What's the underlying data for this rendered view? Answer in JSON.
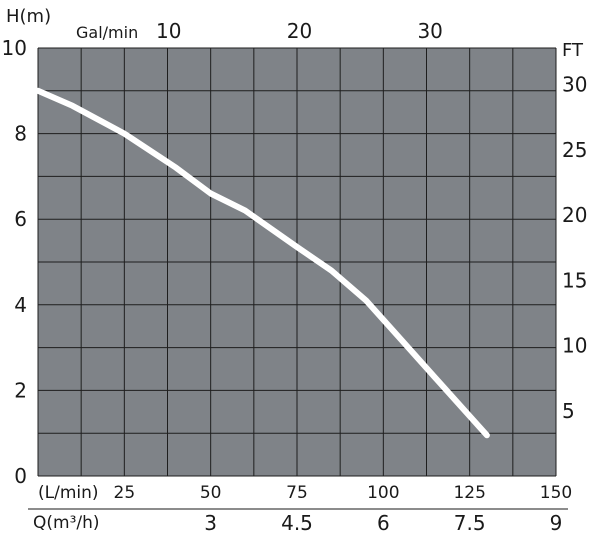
{
  "chart_data": {
    "type": "line",
    "background_color": "#7f8388",
    "grid_color": "#1e1e1e",
    "curve_color": "#ffffff",
    "grid": true,
    "y_left": {
      "label": "H(m)",
      "ticks": [
        0,
        2,
        4,
        6,
        8,
        10
      ],
      "range": [
        0,
        10
      ]
    },
    "y_right": {
      "label": "FT",
      "ticks": [
        5,
        10,
        15,
        20,
        25,
        30
      ]
    },
    "x_top": {
      "label": "Gal/min",
      "ticks": [
        10,
        20,
        30
      ]
    },
    "x_bottom_lmin": {
      "label": "(L/min)",
      "ticks": [
        25,
        50,
        75,
        100,
        125,
        150
      ],
      "range": [
        0,
        150
      ]
    },
    "x_bottom_m3h": {
      "label": "Q(m³/h)",
      "ticks": [
        "3",
        "4.5",
        "6",
        "7.5",
        "9"
      ]
    },
    "series": [
      {
        "x": [
          0,
          10,
          25,
          40,
          50,
          60,
          75,
          85,
          95,
          105,
          115,
          125,
          130
        ],
        "y": [
          9.0,
          8.65,
          8.0,
          7.2,
          6.6,
          6.2,
          5.35,
          4.8,
          4.1,
          3.2,
          2.3,
          1.4,
          0.95
        ]
      }
    ]
  }
}
